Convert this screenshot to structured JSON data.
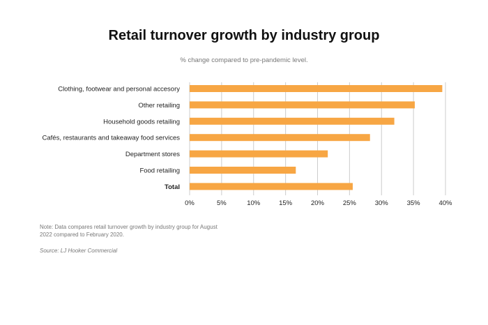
{
  "chart_data": {
    "type": "bar",
    "orientation": "horizontal",
    "title": "Retail turnover growth by industry group",
    "subtitle": "% change compared to pre-pandemic level.",
    "categories": [
      "Clothing, footwear and personal accesory",
      "Other retailing",
      "Household goods retailing",
      "Cafés, restaurants and takeaway food services",
      "Department stores",
      "Food retailing",
      "Total"
    ],
    "values": [
      39.5,
      35.2,
      32.0,
      28.2,
      21.6,
      16.6,
      25.5
    ],
    "xlim": [
      0,
      40
    ],
    "xticks": [
      "0%",
      "5%",
      "10%",
      "15%",
      "20%",
      "25%",
      "30%",
      "35%",
      "40%"
    ],
    "grid": true,
    "bar_color": "#F7A644",
    "grid_color": "#cccccc"
  },
  "note": "Note: Data compares retail turnover growth by industry group for August 2022 compared to February 2020.",
  "source": "Source: LJ Hooker Commercial"
}
